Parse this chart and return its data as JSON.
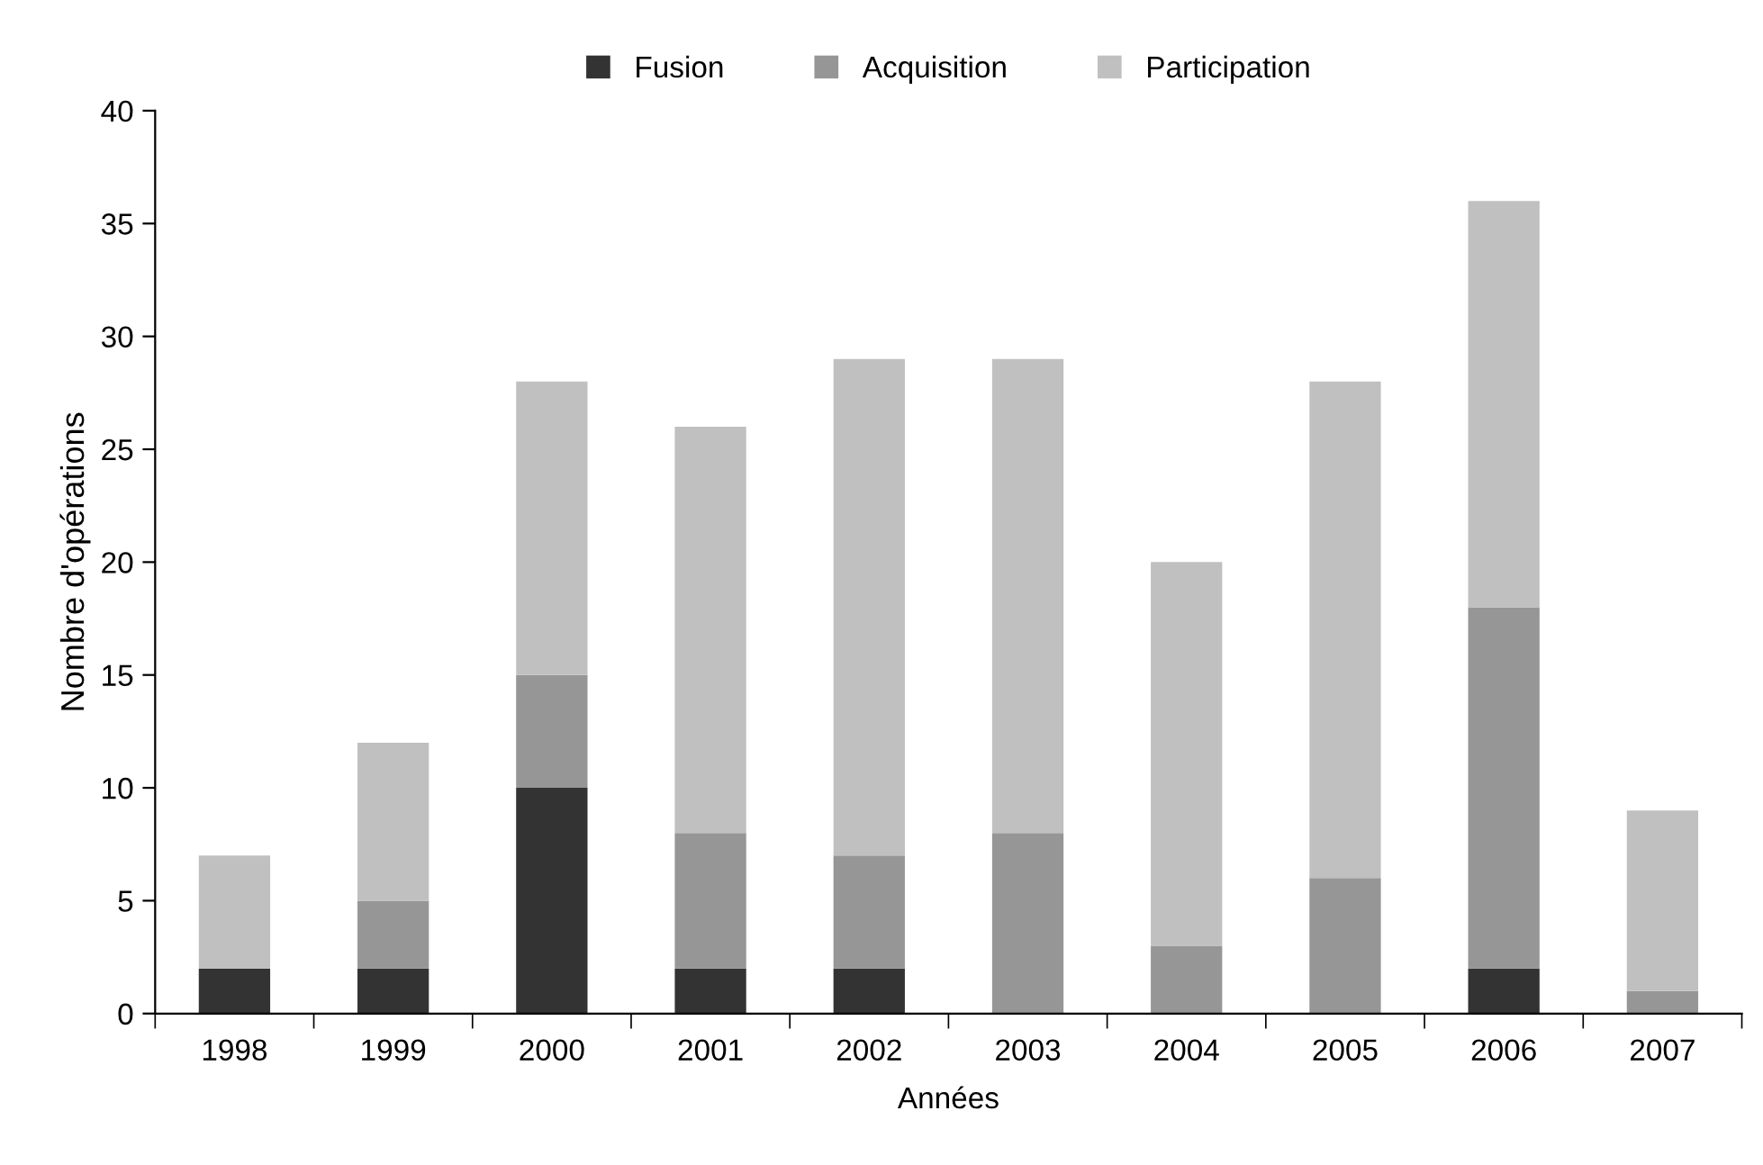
{
  "chart_data": {
    "type": "bar",
    "stacked": true,
    "xlabel": "Années",
    "ylabel": "Nombre d'opérations",
    "categories": [
      "1998",
      "1999",
      "2000",
      "2001",
      "2002",
      "2003",
      "2004",
      "2005",
      "2006",
      "2007"
    ],
    "series": [
      {
        "name": "Fusion",
        "color": "#333333",
        "values": [
          2,
          2,
          10,
          2,
          2,
          0,
          0,
          0,
          2,
          0
        ]
      },
      {
        "name": "Acquisition",
        "color": "#969696",
        "values": [
          0,
          3,
          5,
          6,
          5,
          8,
          3,
          6,
          16,
          1
        ]
      },
      {
        "name": "Participation",
        "color": "#c0c0c0",
        "values": [
          5,
          7,
          13,
          18,
          22,
          21,
          17,
          22,
          18,
          8
        ]
      }
    ],
    "ylim": [
      0,
      40
    ],
    "yticks": [
      0,
      5,
      10,
      15,
      20,
      25,
      30,
      35,
      40
    ],
    "grid": false,
    "legend": "top"
  }
}
